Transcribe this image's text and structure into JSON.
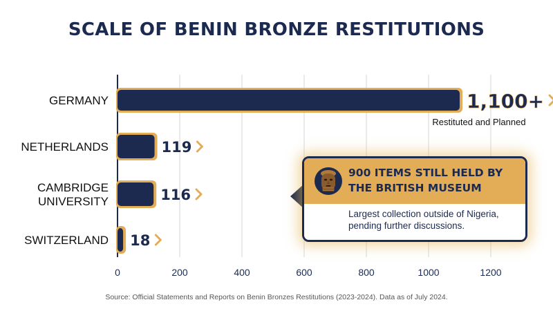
{
  "chart_data": {
    "type": "bar",
    "orientation": "horizontal",
    "title": "SCALE OF BENIN BRONZE RESTITUTIONS",
    "categories": [
      "GERMANY",
      "NETHERLANDS",
      "CAMBRIDGE\nUNIVERSITY",
      "SWITZERLAND"
    ],
    "values": [
      1100,
      119,
      116,
      18
    ],
    "value_labels": [
      "1,100+",
      "119",
      "116",
      "18"
    ],
    "annotations": [
      {
        "category": "GERMANY",
        "text": "Restituted and Planned"
      }
    ],
    "xticks": [
      0,
      200,
      400,
      600,
      800,
      1000,
      1200
    ],
    "xlim": [
      0,
      1300
    ],
    "grid": "vertical"
  },
  "callout": {
    "heading": "900 ITEMS STILL HELD BY THE BRITISH MUSEUM",
    "text": "Largest collection outside of Nigeria, pending further discussions."
  },
  "source": "Source: Official Statements and Reports on Benin Bronzes Restitutions (2023-2024). Data as of July 2024.",
  "colors": {
    "bar": "#1b2a4e",
    "accent": "#e3ad57",
    "text": "#1b2a4e"
  },
  "icons": [
    "benin-bronze-head-icon",
    "chevron-right-icon"
  ]
}
